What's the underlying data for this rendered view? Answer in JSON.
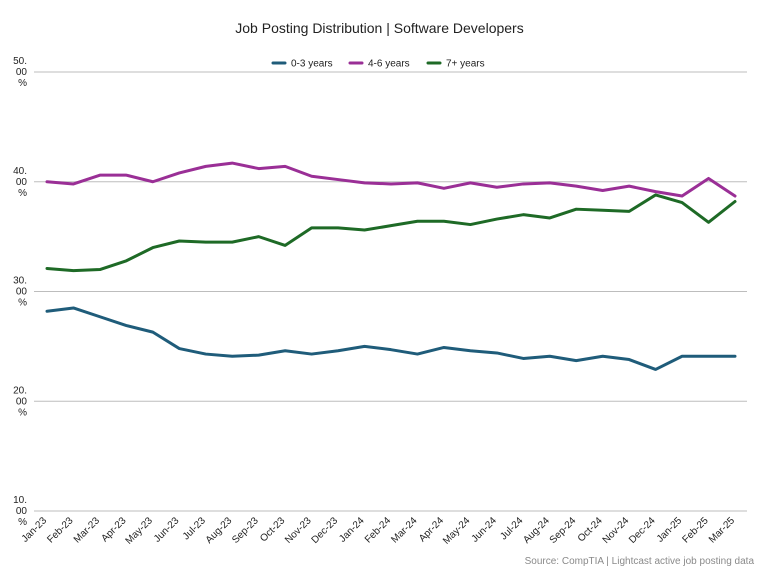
{
  "chart_data": {
    "type": "line",
    "title": "Job Posting Distribution | Software Developers",
    "source": "Source: CompTIA | Lightcast active job posting data",
    "categories": [
      "Jan-23",
      "Feb-23",
      "Mar-23",
      "Apr-23",
      "May-23",
      "Jun-23",
      "Jul-23",
      "Aug-23",
      "Sep-23",
      "Oct-23",
      "Nov-23",
      "Dec-23",
      "Jan-24",
      "Feb-24",
      "Mar-24",
      "Apr-24",
      "May-24",
      "Jun-24",
      "Jul-24",
      "Aug-24",
      "Sep-24",
      "Oct-24",
      "Nov-24",
      "Dec-24",
      "Jan-25",
      "Feb-25",
      "Mar-25"
    ],
    "ylim": [
      10,
      50
    ],
    "yticks": [
      {
        "value": 50,
        "label": [
          "50.",
          "00",
          "%"
        ]
      },
      {
        "value": 40,
        "label": [
          "40.",
          "00",
          "%"
        ]
      },
      {
        "value": 30,
        "label": [
          "30.",
          "00",
          "%"
        ]
      },
      {
        "value": 20,
        "label": [
          "20.",
          "00",
          "%"
        ]
      },
      {
        "value": 10,
        "label": [
          "10.",
          "00",
          "%"
        ]
      }
    ],
    "grid": true,
    "legend_position": "top-center",
    "series": [
      {
        "name": "0-3 years",
        "color": "#1f5c7a",
        "values": [
          28.2,
          28.5,
          27.7,
          26.9,
          26.3,
          24.8,
          24.3,
          24.1,
          24.2,
          24.6,
          24.3,
          24.6,
          25.0,
          24.7,
          24.3,
          24.9,
          24.6,
          24.4,
          23.9,
          24.1,
          23.7,
          24.1,
          23.8,
          22.9,
          24.1,
          24.1,
          24.1
        ]
      },
      {
        "name": "4-6 years",
        "color": "#9a2f96",
        "values": [
          40.0,
          39.8,
          40.6,
          40.6,
          40.0,
          40.8,
          41.4,
          41.7,
          41.2,
          41.4,
          40.5,
          40.2,
          39.9,
          39.8,
          39.9,
          39.4,
          39.9,
          39.5,
          39.8,
          39.9,
          39.6,
          39.2,
          39.6,
          39.1,
          38.7,
          40.3,
          38.7
        ]
      },
      {
        "name": "7+ years",
        "color": "#1e6a26",
        "values": [
          32.1,
          31.9,
          32.0,
          32.8,
          34.0,
          34.6,
          34.5,
          34.5,
          35.0,
          34.2,
          35.8,
          35.8,
          35.6,
          36.0,
          36.4,
          36.4,
          36.1,
          36.6,
          37.0,
          36.7,
          37.5,
          37.4,
          37.3,
          38.8,
          38.1,
          36.3,
          38.2
        ]
      }
    ]
  }
}
